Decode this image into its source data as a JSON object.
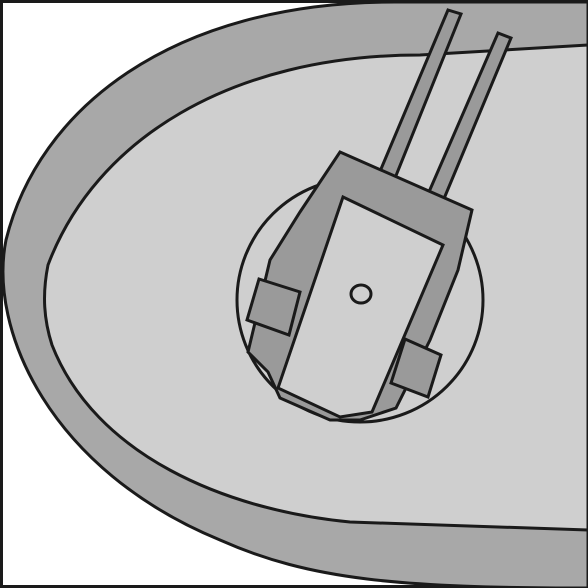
{
  "sprite": {
    "kind": "naval-gun-turret-tile",
    "palette": {
      "background": "#ffffff",
      "outline": "#1a1a1a",
      "hull_outer": "#a8a8a8",
      "hull_deck": "#cfcfcf",
      "barbette": "#cfcfcf",
      "turret_base": "#9a9a9a",
      "turret_top": "#cfcfcf",
      "barrels": "#9a9a9a",
      "trunnions": "#9a9a9a"
    },
    "gun_barrel_count": 2,
    "icons": [
      "hull-icon",
      "barbette-icon",
      "turret-icon",
      "gun-barrel-icon",
      "hatch-icon"
    ]
  }
}
